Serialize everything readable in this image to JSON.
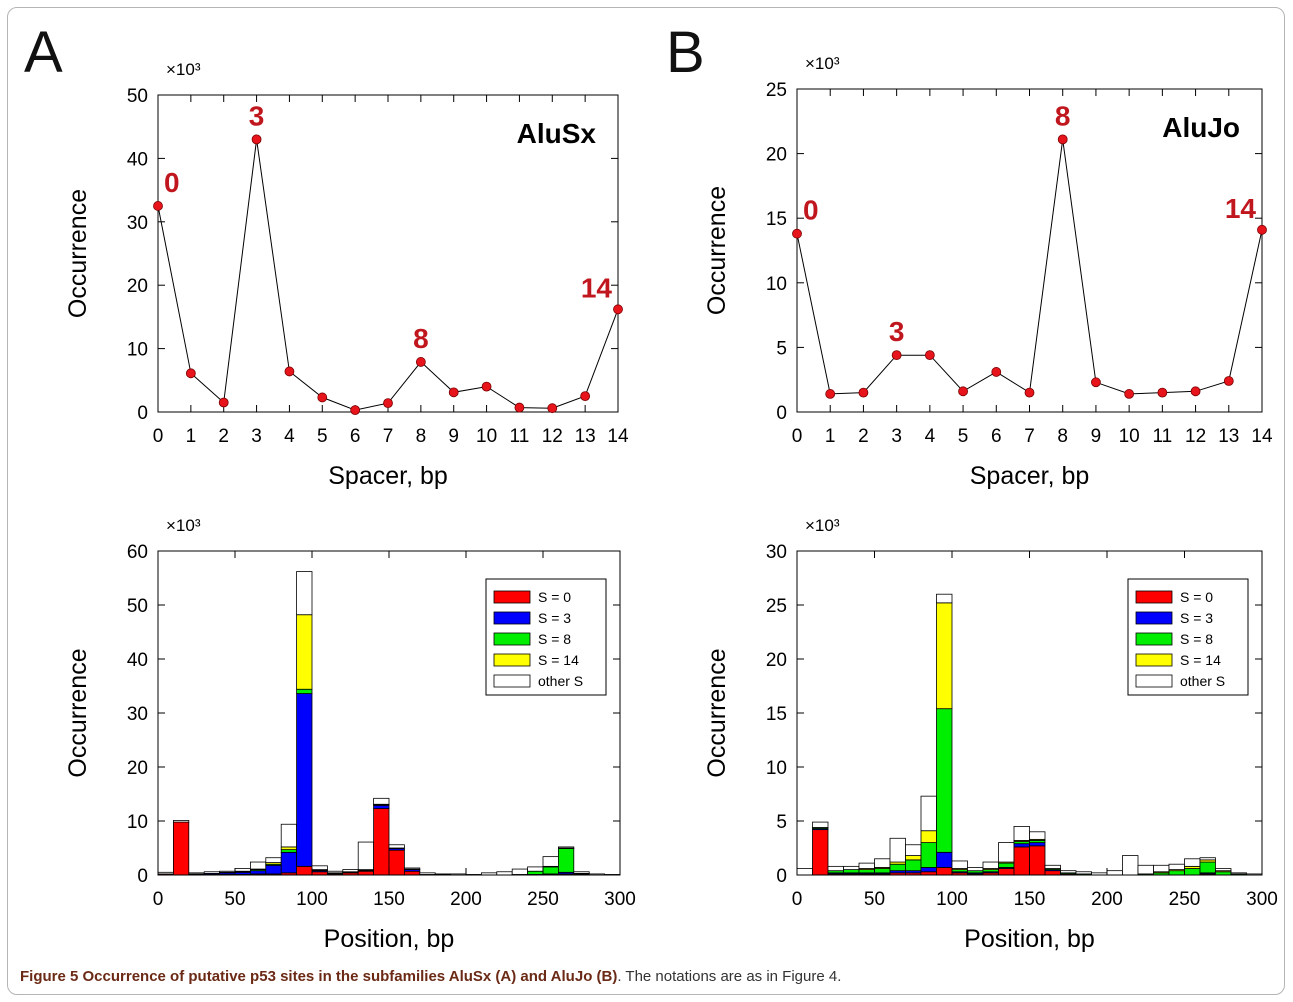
{
  "panels": {
    "a": "A",
    "b": "B"
  },
  "caption": {
    "bold": "Figure 5 Occurrence of putative p53 sites in the subfamilies AluSx (A) and AluJo (B)",
    "rest": ". The notations are as in Figure 4."
  },
  "chart_data": [
    {
      "type": "line",
      "title": "AluSx",
      "multiplier_label": "×10³",
      "xlabel": "Spacer, bp",
      "ylabel": "Occurrence",
      "xlim": [
        0,
        14
      ],
      "ylim": [
        0,
        50
      ],
      "xticks": [
        0,
        1,
        2,
        3,
        4,
        5,
        6,
        7,
        8,
        9,
        10,
        11,
        12,
        13,
        14
      ],
      "yticks": [
        0,
        10,
        20,
        30,
        40,
        50
      ],
      "x": [
        0,
        1,
        2,
        3,
        4,
        5,
        6,
        7,
        8,
        9,
        10,
        11,
        12,
        13,
        14
      ],
      "series": [
        {
          "values": [
            32.5,
            6.1,
            1.5,
            43.0,
            6.4,
            2.3,
            0.3,
            1.4,
            7.9,
            3.1,
            4.0,
            0.7,
            0.6,
            2.5,
            16.2
          ]
        }
      ],
      "annotations": [
        {
          "text": "0",
          "x": 0,
          "y": 32.5
        },
        {
          "text": "3",
          "x": 3,
          "y": 43.0
        },
        {
          "text": "8",
          "x": 8,
          "y": 7.9
        },
        {
          "text": "14",
          "x": 14,
          "y": 16.2
        }
      ],
      "marker_color": "#e8141c",
      "annotation_color": "#c0161e"
    },
    {
      "type": "line",
      "title": "AluJo",
      "multiplier_label": "×10³",
      "xlabel": "Spacer, bp",
      "ylabel": "Occurrence",
      "xlim": [
        0,
        14
      ],
      "ylim": [
        0,
        25
      ],
      "xticks": [
        0,
        1,
        2,
        3,
        4,
        5,
        6,
        7,
        8,
        9,
        10,
        11,
        12,
        13,
        14
      ],
      "yticks": [
        0,
        5,
        10,
        15,
        20,
        25
      ],
      "x": [
        0,
        1,
        2,
        3,
        4,
        5,
        6,
        7,
        8,
        9,
        10,
        11,
        12,
        13,
        14
      ],
      "series": [
        {
          "values": [
            13.8,
            1.4,
            1.5,
            4.4,
            4.4,
            1.6,
            3.1,
            1.5,
            21.1,
            2.3,
            1.4,
            1.5,
            1.6,
            2.4,
            14.1
          ]
        }
      ],
      "annotations": [
        {
          "text": "0",
          "x": 0,
          "y": 13.8
        },
        {
          "text": "3",
          "x": 3,
          "y": 4.4
        },
        {
          "text": "8",
          "x": 8,
          "y": 21.1
        },
        {
          "text": "14",
          "x": 14,
          "y": 14.1
        }
      ],
      "marker_color": "#e8141c",
      "annotation_color": "#c0161e"
    },
    {
      "type": "bar",
      "stacked": true,
      "multiplier_label": "×10³",
      "xlabel": "Position, bp",
      "ylabel": "Occurrence",
      "xlim": [
        0,
        300
      ],
      "ylim": [
        0,
        60
      ],
      "xticks": [
        0,
        50,
        100,
        150,
        200,
        250,
        300
      ],
      "yticks": [
        0,
        10,
        20,
        30,
        40,
        50,
        60
      ],
      "bin_width": 10,
      "bin_starts": [
        0,
        10,
        20,
        30,
        40,
        50,
        60,
        70,
        80,
        90,
        100,
        110,
        120,
        130,
        140,
        150,
        160,
        170,
        180,
        190,
        200,
        210,
        220,
        230,
        240,
        250,
        260,
        270,
        280,
        290
      ],
      "legend_position": "top-right",
      "series": [
        {
          "name": "S = 0",
          "color": "#ff0000",
          "values": [
            0.2,
            9.8,
            0.1,
            0.1,
            0.1,
            0.1,
            0.2,
            0.2,
            0.4,
            1.6,
            0.6,
            0.2,
            0.4,
            0.7,
            12.3,
            4.6,
            0.7,
            0.1,
            0.1,
            0.0,
            0.0,
            0.0,
            0.0,
            0.0,
            0.0,
            0.1,
            0.2,
            0.1,
            0.0,
            0.0
          ]
        },
        {
          "name": "S = 3",
          "color": "#0000ff",
          "values": [
            0.0,
            0.0,
            0.1,
            0.2,
            0.3,
            0.4,
            0.6,
            1.6,
            3.8,
            32.0,
            0.2,
            0.1,
            0.1,
            0.1,
            0.6,
            0.3,
            0.3,
            0.0,
            0.0,
            0.0,
            0.0,
            0.0,
            0.0,
            0.0,
            0.1,
            0.1,
            0.3,
            0.1,
            0.0,
            0.0
          ]
        },
        {
          "name": "S = 8",
          "color": "#00ee00",
          "values": [
            0.0,
            0.0,
            0.0,
            0.0,
            0.1,
            0.1,
            0.2,
            0.2,
            0.5,
            0.8,
            0.1,
            0.1,
            0.1,
            0.1,
            0.1,
            0.1,
            0.1,
            0.0,
            0.0,
            0.0,
            0.0,
            0.0,
            0.0,
            0.1,
            0.6,
            1.3,
            4.4,
            0.1,
            0.0,
            0.0
          ]
        },
        {
          "name": "S = 14",
          "color": "#ffff00",
          "values": [
            0.0,
            0.0,
            0.0,
            0.0,
            0.0,
            0.1,
            0.1,
            0.3,
            0.5,
            13.8,
            0.1,
            0.0,
            0.0,
            0.1,
            0.1,
            0.0,
            0.0,
            0.0,
            0.0,
            0.0,
            0.0,
            0.0,
            0.0,
            0.0,
            0.0,
            0.1,
            0.1,
            0.0,
            0.0,
            0.0
          ]
        },
        {
          "name": "other S",
          "color": "#ffffff",
          "values": [
            0.3,
            0.3,
            0.2,
            0.3,
            0.2,
            0.5,
            1.3,
            0.9,
            4.2,
            8.0,
            0.7,
            0.3,
            0.4,
            5.1,
            1.1,
            0.6,
            0.2,
            0.3,
            0.1,
            0.2,
            0.1,
            0.4,
            0.6,
            1.0,
            0.8,
            1.8,
            0.2,
            0.3,
            0.2,
            0.1
          ]
        }
      ]
    },
    {
      "type": "bar",
      "stacked": true,
      "multiplier_label": "×10³",
      "xlabel": "Position, bp",
      "ylabel": "Occurrence",
      "xlim": [
        0,
        300
      ],
      "ylim": [
        0,
        30
      ],
      "xticks": [
        0,
        50,
        100,
        150,
        200,
        250,
        300
      ],
      "yticks": [
        0,
        5,
        10,
        15,
        20,
        25,
        30
      ],
      "bin_width": 10,
      "bin_starts": [
        0,
        10,
        20,
        30,
        40,
        50,
        60,
        70,
        80,
        90,
        100,
        110,
        120,
        130,
        140,
        150,
        160,
        170,
        180,
        190,
        200,
        210,
        220,
        230,
        240,
        250,
        260,
        270,
        280,
        290
      ],
      "legend_position": "top-right",
      "series": [
        {
          "name": "S = 0",
          "color": "#ff0000",
          "values": [
            0.0,
            4.2,
            0.1,
            0.1,
            0.1,
            0.1,
            0.2,
            0.2,
            0.3,
            0.7,
            0.2,
            0.1,
            0.2,
            0.6,
            2.6,
            2.7,
            0.4,
            0.1,
            0.0,
            0.0,
            0.0,
            0.0,
            0.0,
            0.0,
            0.0,
            0.0,
            0.1,
            0.0,
            0.0,
            0.0
          ]
        },
        {
          "name": "S = 3",
          "color": "#0000ff",
          "values": [
            0.0,
            0.1,
            0.1,
            0.1,
            0.1,
            0.1,
            0.2,
            0.2,
            0.4,
            1.4,
            0.1,
            0.1,
            0.1,
            0.1,
            0.3,
            0.3,
            0.1,
            0.0,
            0.0,
            0.0,
            0.0,
            0.0,
            0.0,
            0.0,
            0.0,
            0.0,
            0.1,
            0.0,
            0.0,
            0.0
          ]
        },
        {
          "name": "S = 8",
          "color": "#00ee00",
          "values": [
            0.0,
            0.1,
            0.2,
            0.3,
            0.3,
            0.4,
            0.6,
            1.0,
            2.3,
            13.3,
            0.2,
            0.2,
            0.2,
            0.4,
            0.2,
            0.2,
            0.1,
            0.1,
            0.1,
            0.0,
            0.0,
            0.0,
            0.1,
            0.2,
            0.4,
            0.6,
            1.0,
            0.3,
            0.1,
            0.0
          ]
        },
        {
          "name": "S = 14",
          "color": "#ffff00",
          "values": [
            0.0,
            0.0,
            0.0,
            0.0,
            0.1,
            0.1,
            0.2,
            0.4,
            1.1,
            9.8,
            0.1,
            0.0,
            0.1,
            0.1,
            0.1,
            0.1,
            0.0,
            0.0,
            0.0,
            0.0,
            0.0,
            0.0,
            0.0,
            0.1,
            0.1,
            0.2,
            0.2,
            0.1,
            0.0,
            0.0
          ]
        },
        {
          "name": "other S",
          "color": "#ffffff",
          "values": [
            0.6,
            0.5,
            0.4,
            0.3,
            0.5,
            0.8,
            2.2,
            1.0,
            3.2,
            0.8,
            0.7,
            0.3,
            0.6,
            1.8,
            1.3,
            0.7,
            0.3,
            0.2,
            0.2,
            0.2,
            0.4,
            1.8,
            0.8,
            0.6,
            0.5,
            0.7,
            0.2,
            0.2,
            0.1,
            0.1
          ]
        }
      ]
    }
  ]
}
